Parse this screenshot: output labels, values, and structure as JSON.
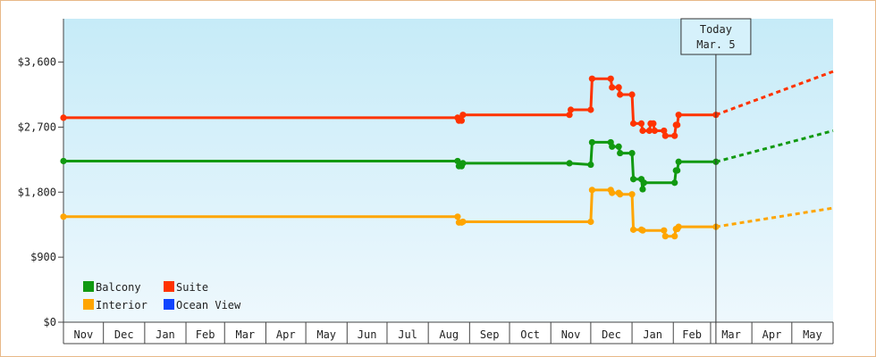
{
  "chart_data": {
    "type": "line",
    "title": "",
    "xlabel": "",
    "ylabel": "",
    "ylim": [
      0,
      4200
    ],
    "yticks": [
      0,
      900,
      1800,
      2700,
      3600
    ],
    "ytick_labels": [
      "$0",
      "$900",
      "$1,800",
      "$2,700",
      "$3,600"
    ],
    "x_months": [
      "Nov",
      "Dec",
      "Jan",
      "Feb",
      "Mar",
      "Apr",
      "May",
      "Jun",
      "Jul",
      "Aug",
      "Sep",
      "Oct",
      "Nov",
      "Dec",
      "Jan",
      "Feb",
      "Mar",
      "Apr",
      "May"
    ],
    "x_range": [
      "2023-11-01",
      "2025-06-01"
    ],
    "today": {
      "date": "2025-03-05",
      "label_line1": "Today",
      "label_line2": "Mar. 5"
    },
    "legend": {
      "placement": "bottom-left",
      "items": [
        {
          "label": "Balcony",
          "color": "#119911"
        },
        {
          "label": "Suite",
          "color": "#ff3300"
        },
        {
          "label": "Interior",
          "color": "#ffa500"
        },
        {
          "label": "Ocean View",
          "color": "#1144ff"
        }
      ]
    },
    "series": [
      {
        "name": "Suite",
        "color": "#ff3300",
        "points": [
          [
            "2023-11-01",
            2830
          ],
          [
            "2024-08-23",
            2830
          ],
          [
            "2024-08-24",
            2790
          ],
          [
            "2024-08-26",
            2790
          ],
          [
            "2024-08-27",
            2870
          ],
          [
            "2024-11-15",
            2870
          ],
          [
            "2024-11-16",
            2940
          ],
          [
            "2024-12-01",
            2940
          ],
          [
            "2024-12-02",
            3370
          ],
          [
            "2024-12-16",
            3370
          ],
          [
            "2024-12-17",
            3250
          ],
          [
            "2024-12-22",
            3250
          ],
          [
            "2024-12-23",
            3150
          ],
          [
            "2025-01-01",
            3150
          ],
          [
            "2025-01-02",
            2750
          ],
          [
            "2025-01-08",
            2750
          ],
          [
            "2025-01-09",
            2650
          ],
          [
            "2025-01-14",
            2650
          ],
          [
            "2025-01-15",
            2750
          ],
          [
            "2025-01-17",
            2750
          ],
          [
            "2025-01-18",
            2650
          ],
          [
            "2025-01-25",
            2650
          ],
          [
            "2025-01-26",
            2580
          ],
          [
            "2025-02-02",
            2580
          ],
          [
            "2025-02-03",
            2730
          ],
          [
            "2025-02-04",
            2730
          ],
          [
            "2025-02-05",
            2870
          ],
          [
            "2025-03-05",
            2870
          ]
        ],
        "forecast": [
          [
            "2025-03-05",
            2870
          ],
          [
            "2025-06-01",
            3470
          ]
        ]
      },
      {
        "name": "Balcony",
        "color": "#119911",
        "points": [
          [
            "2023-11-01",
            2230
          ],
          [
            "2024-08-23",
            2230
          ],
          [
            "2024-08-24",
            2160
          ],
          [
            "2024-08-26",
            2160
          ],
          [
            "2024-08-27",
            2200
          ],
          [
            "2024-11-15",
            2200
          ],
          [
            "2024-12-01",
            2180
          ],
          [
            "2024-12-02",
            2490
          ],
          [
            "2024-12-16",
            2490
          ],
          [
            "2024-12-17",
            2430
          ],
          [
            "2024-12-22",
            2430
          ],
          [
            "2024-12-23",
            2340
          ],
          [
            "2025-01-01",
            2340
          ],
          [
            "2025-01-02",
            1980
          ],
          [
            "2025-01-08",
            1980
          ],
          [
            "2025-01-09",
            1840
          ],
          [
            "2025-01-10",
            1930
          ],
          [
            "2025-02-02",
            1930
          ],
          [
            "2025-02-03",
            2100
          ],
          [
            "2025-02-04",
            2100
          ],
          [
            "2025-02-05",
            2220
          ],
          [
            "2025-03-05",
            2220
          ]
        ],
        "forecast": [
          [
            "2025-03-05",
            2220
          ],
          [
            "2025-06-01",
            2650
          ]
        ]
      },
      {
        "name": "Interior",
        "color": "#ffa500",
        "points": [
          [
            "2023-11-01",
            1460
          ],
          [
            "2024-08-23",
            1460
          ],
          [
            "2024-08-24",
            1380
          ],
          [
            "2024-08-26",
            1380
          ],
          [
            "2024-08-27",
            1390
          ],
          [
            "2024-12-01",
            1390
          ],
          [
            "2024-12-02",
            1830
          ],
          [
            "2024-12-16",
            1830
          ],
          [
            "2024-12-17",
            1790
          ],
          [
            "2024-12-22",
            1790
          ],
          [
            "2024-12-23",
            1770
          ],
          [
            "2025-01-01",
            1770
          ],
          [
            "2025-01-02",
            1280
          ],
          [
            "2025-01-08",
            1280
          ],
          [
            "2025-01-09",
            1270
          ],
          [
            "2025-01-25",
            1270
          ],
          [
            "2025-01-26",
            1190
          ],
          [
            "2025-02-02",
            1190
          ],
          [
            "2025-02-03",
            1290
          ],
          [
            "2025-02-04",
            1290
          ],
          [
            "2025-02-05",
            1320
          ],
          [
            "2025-03-05",
            1320
          ]
        ],
        "forecast": [
          [
            "2025-03-05",
            1320
          ],
          [
            "2025-06-01",
            1580
          ]
        ]
      },
      {
        "name": "Ocean View",
        "color": "#1144ff",
        "points": [],
        "forecast": []
      }
    ]
  }
}
